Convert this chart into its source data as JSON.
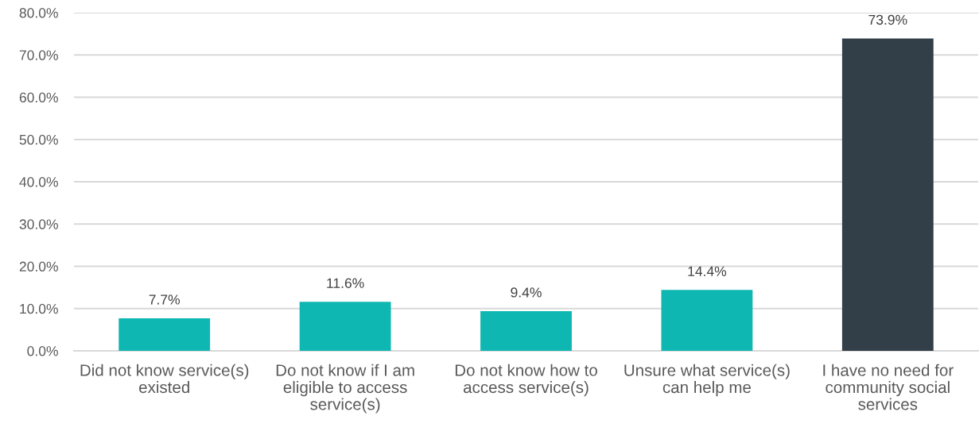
{
  "chart_data": {
    "type": "bar",
    "categories": [
      "Did not know service(s) existed",
      "Do not know if I am eligible to access service(s)",
      "Do not know how to access service(s)",
      "Unsure what service(s) can help me",
      "I have no need for community social services"
    ],
    "values": [
      7.7,
      11.6,
      9.4,
      14.4,
      73.9
    ],
    "colors": [
      "#0fb7b2",
      "#0fb7b2",
      "#0fb7b2",
      "#0fb7b2",
      "#323e48"
    ],
    "value_labels": [
      "7.7%",
      "11.6%",
      "9.4%",
      "14.4%",
      "73.9%"
    ],
    "ylim": [
      0,
      80
    ],
    "yticks": [
      {
        "value": 0,
        "label": "0.0%"
      },
      {
        "value": 10,
        "label": "10.0%"
      },
      {
        "value": 20,
        "label": "20.0%"
      },
      {
        "value": 30,
        "label": "30.0%"
      },
      {
        "value": 40,
        "label": "40.0%"
      },
      {
        "value": 50,
        "label": "50.0%"
      },
      {
        "value": 60,
        "label": "60.0%"
      },
      {
        "value": 70,
        "label": "70.0%"
      },
      {
        "value": 80,
        "label": "80.0%"
      }
    ],
    "grid": "y"
  }
}
